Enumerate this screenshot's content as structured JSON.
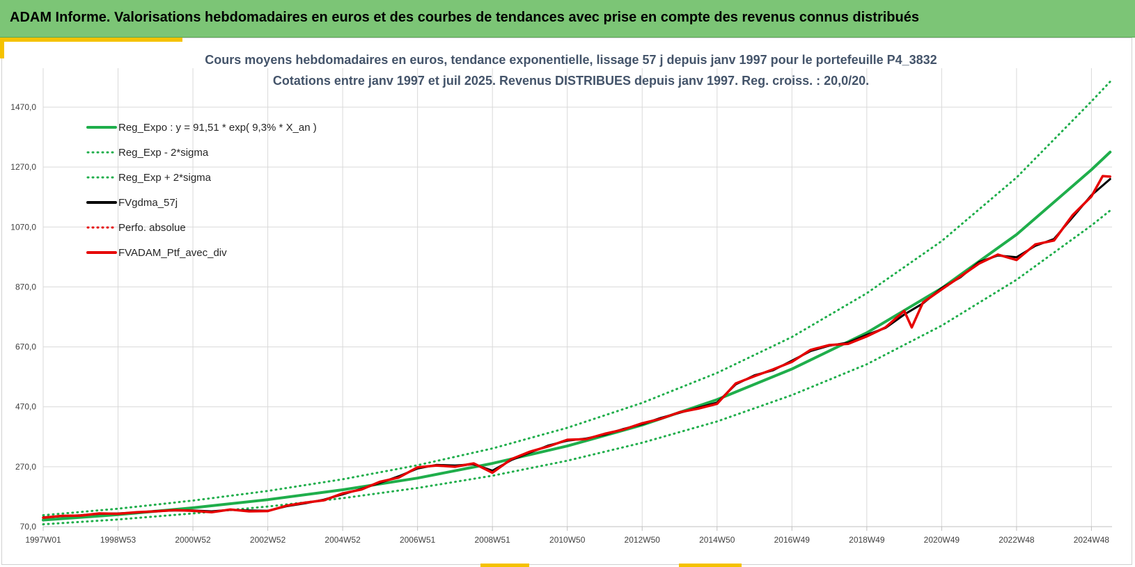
{
  "header": {
    "title": "ADAM Informe. Valorisations hebdomadaires en euros et des courbes de tendances avec prise en compte des revenus connus distribués"
  },
  "colors": {
    "banner": "#7cc576",
    "accent": "#f5c200",
    "green": "#1fae4b",
    "black": "#000000",
    "red": "#e60000"
  },
  "chart_data": {
    "type": "line",
    "title": "Cours moyens hebdomadaires  en euros, tendance exponentielle, lissage 57 j depuis janv 1997 pour le portefeuille P4_3832",
    "subtitle": "Cotations entre janv 1997 et juil 2025. Revenus DISTRIBUES depuis janv 1997. Reg. croiss. : 20,0/20.",
    "xlabel": "",
    "ylabel": "",
    "x_range": [
      1997.0,
      2025.55
    ],
    "ylim": [
      70,
      1620
    ],
    "y_ticks": [
      "70,0",
      "270,0",
      "470,0",
      "670,0",
      "870,0",
      "1070,0",
      "1270,0",
      "1470,0"
    ],
    "y_tick_values": [
      70,
      270,
      470,
      670,
      870,
      1070,
      1270,
      1470
    ],
    "x_ticks": [
      "1997W01",
      "1998W53",
      "2000W52",
      "2002W52",
      "2004W52",
      "2006W51",
      "2008W51",
      "2010W50",
      "2012W50",
      "2014W50",
      "2016W49",
      "2018W49",
      "2020W49",
      "2022W48",
      "2024W48"
    ],
    "x_tick_values": [
      1997.0,
      1999.0,
      2001.0,
      2003.0,
      2005.0,
      2007.0,
      2009.0,
      2011.0,
      2013.0,
      2015.0,
      2017.0,
      2019.0,
      2021.0,
      2023.0,
      2025.0
    ],
    "grid": true,
    "legend_position": "top-left",
    "legend": [
      {
        "name": "Reg_Expo : y = 91,51 * exp( 9,3% *  X_an )",
        "color": "#1fae4b",
        "style": "solid"
      },
      {
        "name": "Reg_Exp - 2*sigma",
        "color": "#1fae4b",
        "style": "dotted"
      },
      {
        "name": "Reg_Exp + 2*sigma",
        "color": "#1fae4b",
        "style": "dotted"
      },
      {
        "name": "FVgdma_57j",
        "color": "#000000",
        "style": "solid"
      },
      {
        "name": "Perfo. absolue",
        "color": "#e60000",
        "style": "dotted"
      },
      {
        "name": "FVADAM_Ptf_avec_div",
        "color": "#e60000",
        "style": "solid"
      }
    ],
    "series": [
      {
        "name": "Reg_Expo : y = 91,51 * exp( 9,3% *  X_an )",
        "style": "solid",
        "color": "#1fae4b",
        "x": [
          1997.0,
          1999.0,
          2001.0,
          2003.0,
          2005.0,
          2007.0,
          2009.0,
          2011.0,
          2013.0,
          2015.0,
          2017.0,
          2019.0,
          2021.0,
          2023.0,
          2025.0,
          2025.5
        ],
        "values": [
          92,
          110,
          133,
          160,
          193,
          232,
          281,
          339,
          409,
          494,
          596,
          717,
          866,
          1045,
          1261,
          1320
        ]
      },
      {
        "name": "Reg_Exp - 2*sigma",
        "style": "dotted",
        "color": "#1fae4b",
        "x": [
          1997.0,
          1999.0,
          2001.0,
          2003.0,
          2005.0,
          2007.0,
          2009.0,
          2011.0,
          2013.0,
          2015.0,
          2017.0,
          2019.0,
          2021.0,
          2023.0,
          2025.0,
          2025.5
        ],
        "values": [
          78,
          94,
          114,
          137,
          165,
          199,
          240,
          290,
          350,
          421,
          509,
          612,
          741,
          894,
          1075,
          1125
        ]
      },
      {
        "name": "Reg_Exp + 2*sigma",
        "style": "dotted",
        "color": "#1fae4b",
        "x": [
          1997.0,
          1999.0,
          2001.0,
          2003.0,
          2005.0,
          2007.0,
          2009.0,
          2011.0,
          2013.0,
          2015.0,
          2017.0,
          2019.0,
          2021.0,
          2023.0,
          2025.0,
          2025.5
        ],
        "values": [
          108,
          130,
          157,
          189,
          228,
          275,
          331,
          400,
          483,
          583,
          703,
          849,
          1023,
          1235,
          1489,
          1555
        ]
      },
      {
        "name": "FVgdma_57j",
        "style": "solid",
        "color": "#000000",
        "x": [
          1997.0,
          1997.5,
          1998.0,
          1998.5,
          1999.0,
          1999.5,
          2000.0,
          2000.5,
          2001.0,
          2001.5,
          2002.0,
          2002.5,
          2003.0,
          2003.5,
          2004.0,
          2004.5,
          2005.0,
          2005.5,
          2006.0,
          2006.5,
          2007.0,
          2007.5,
          2008.0,
          2008.5,
          2009.0,
          2009.5,
          2010.0,
          2010.5,
          2011.0,
          2011.5,
          2012.0,
          2012.5,
          2013.0,
          2013.5,
          2014.0,
          2014.5,
          2015.0,
          2015.5,
          2016.0,
          2016.5,
          2017.0,
          2017.5,
          2018.0,
          2018.5,
          2019.0,
          2019.5,
          2020.0,
          2020.5,
          2021.0,
          2021.5,
          2022.0,
          2022.5,
          2023.0,
          2023.5,
          2024.0,
          2024.5,
          2025.0,
          2025.5
        ],
        "values": [
          101,
          105,
          108,
          113,
          114,
          117,
          122,
          124,
          124,
          121,
          126,
          124,
          123,
          138,
          148,
          160,
          178,
          196,
          216,
          238,
          264,
          276,
          274,
          278,
          257,
          292,
          317,
          341,
          357,
          364,
          377,
          396,
          412,
          433,
          450,
          467,
          484,
          545,
          575,
          592,
          624,
          656,
          674,
          684,
          710,
          733,
          778,
          815,
          866,
          902,
          953,
          975,
          969,
          1007,
          1030,
          1103,
          1176,
          1230
        ]
      },
      {
        "name": "FVADAM_Ptf_avec_div",
        "style": "solid",
        "color": "#e60000",
        "x": [
          1997.0,
          1997.5,
          1998.0,
          1998.5,
          1999.0,
          1999.5,
          2000.0,
          2000.5,
          2001.0,
          2001.5,
          2002.0,
          2002.5,
          2003.0,
          2003.5,
          2004.0,
          2004.5,
          2005.0,
          2005.5,
          2006.0,
          2006.5,
          2007.0,
          2007.5,
          2008.0,
          2008.5,
          2009.0,
          2009.5,
          2010.0,
          2010.5,
          2011.0,
          2011.5,
          2012.0,
          2012.5,
          2013.0,
          2013.5,
          2014.0,
          2014.5,
          2015.0,
          2015.5,
          2016.0,
          2016.5,
          2017.0,
          2017.5,
          2018.0,
          2018.5,
          2019.0,
          2019.5,
          2020.0,
          2020.2,
          2020.5,
          2021.0,
          2021.5,
          2022.0,
          2022.5,
          2023.0,
          2023.5,
          2024.0,
          2024.5,
          2025.0,
          2025.3,
          2025.5
        ],
        "values": [
          100,
          106,
          107,
          114,
          113,
          118,
          121,
          125,
          123,
          118,
          127,
          121,
          122,
          140,
          150,
          158,
          181,
          194,
          220,
          234,
          268,
          274,
          270,
          281,
          250,
          295,
          320,
          338,
          360,
          362,
          380,
          394,
          415,
          430,
          452,
          464,
          480,
          548,
          572,
          595,
          620,
          660,
          676,
          680,
          705,
          735,
          790,
          735,
          818,
          862,
          905,
          948,
          978,
          960,
          1012,
          1025,
          1110,
          1172,
          1240,
          1238
        ]
      }
    ]
  }
}
